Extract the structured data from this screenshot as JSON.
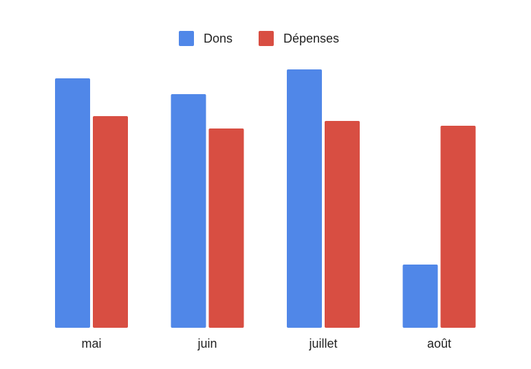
{
  "chart_data": {
    "type": "bar",
    "categories": [
      "mai",
      "juin",
      "juillet",
      "août"
    ],
    "series": [
      {
        "name": "Dons",
        "color": "#5087e8",
        "values": [
          363,
          340,
          376,
          92
        ]
      },
      {
        "name": "Dépenses",
        "color": "#d84e42",
        "values": [
          308,
          290,
          301,
          294
        ]
      }
    ],
    "title": "",
    "xlabel": "",
    "ylabel": "",
    "ylim": [
      0,
      380
    ],
    "grid": false,
    "legend": "top-center"
  }
}
